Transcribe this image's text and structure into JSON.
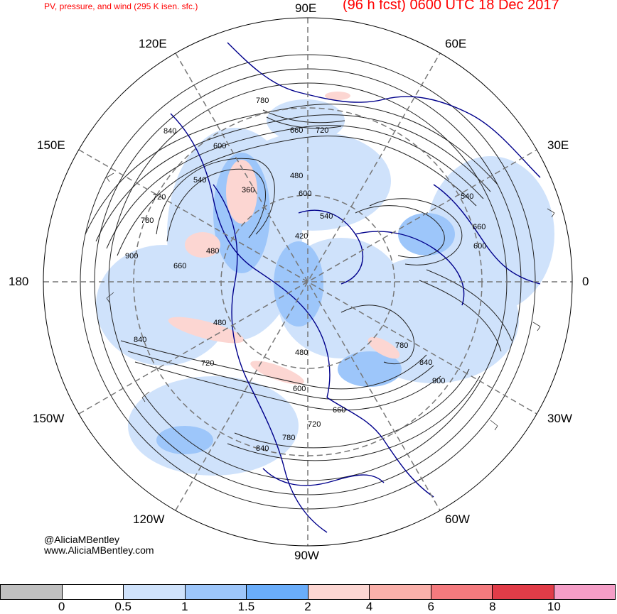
{
  "header": {
    "product": "PV, pressure, and wind (295 K isen. sfc.)",
    "valid": "(96 h fcst) 0600 UTC 18 Dec 2017"
  },
  "map": {
    "projection": "north polar stereographic",
    "longitude_labels": [
      "90E",
      "60E",
      "30E",
      "0",
      "30W",
      "60W",
      "90W",
      "120W",
      "150W",
      "180",
      "150E",
      "120E"
    ],
    "contour_labels": [
      "780",
      "660",
      "720",
      "840",
      "600",
      "480",
      "360",
      "600",
      "540",
      "540",
      "420",
      "720",
      "780",
      "540",
      "480",
      "660",
      "660",
      "600",
      "480",
      "900",
      "480",
      "840",
      "720",
      "600",
      "660",
      "720",
      "780",
      "840",
      "900",
      "780",
      "840"
    ]
  },
  "credits": {
    "handle": "@AliciaMBentley",
    "website": "www.AliciaMBentley.com"
  },
  "colorbar": {
    "quantity": "PV",
    "colors": [
      "#c0c0c0",
      "#ffffff",
      "#cfe2fb",
      "#9dc6fa",
      "#6aadfa",
      "#fcd6d2",
      "#fab0aa",
      "#f47a7e",
      "#e13c48",
      "#f59ec7"
    ],
    "ticks": [
      "0",
      "0.5",
      "1",
      "1.5",
      "2",
      "4",
      "6",
      "8",
      "10"
    ]
  },
  "colors": {
    "title": "#ff0000",
    "coastline": "#00008b",
    "contour": "#222222",
    "grid": "#777777"
  }
}
